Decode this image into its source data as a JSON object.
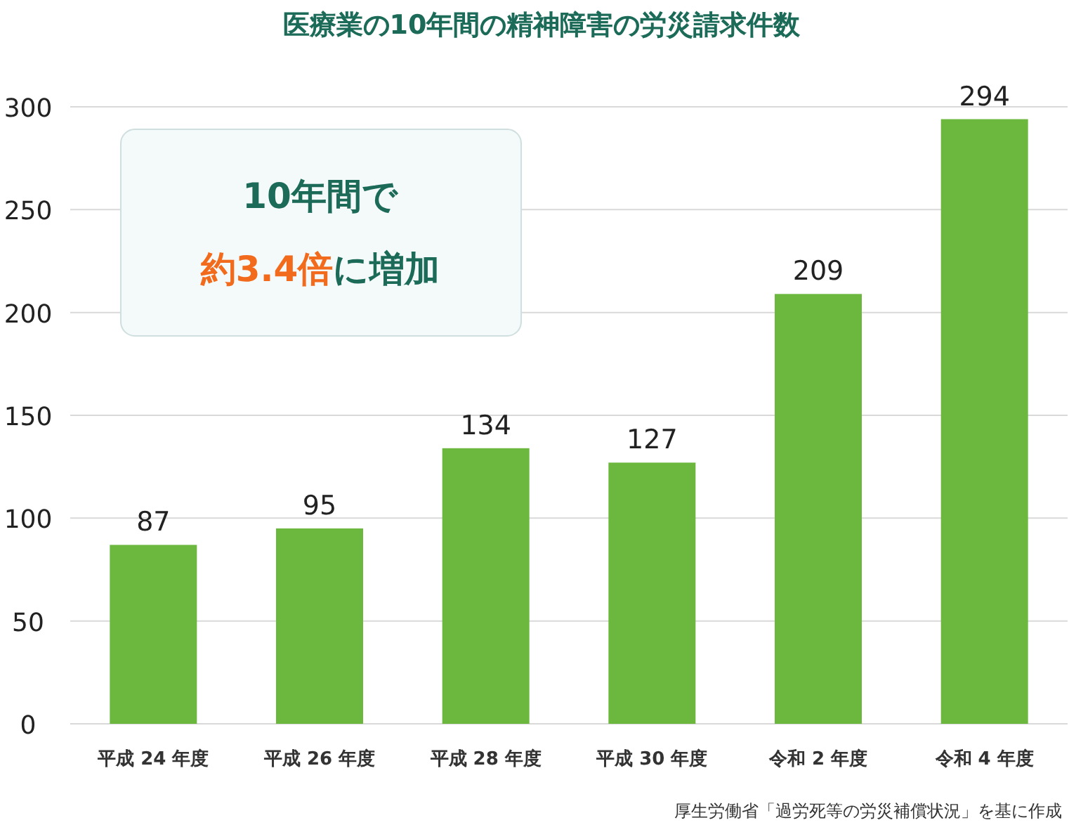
{
  "chart_data": {
    "type": "bar",
    "title": "医療業の10年間の精神障害の労災請求件数",
    "categories": [
      "平成 24 年度",
      "平成 26 年度",
      "平成 28 年度",
      "平成 30 年度",
      "令和 2 年度",
      "令和 4 年度"
    ],
    "values": [
      87,
      95,
      134,
      127,
      209,
      294
    ],
    "color": "#6cb83f",
    "ylim": [
      0,
      300
    ],
    "yticks": [
      0,
      50,
      100,
      150,
      200,
      250,
      300
    ],
    "grid": "y",
    "data_labels": true,
    "annotations": [
      "10年間で",
      "約3.4倍に増加",
      "厚生労働省「過労死等の労災補償状況」を基に作成"
    ]
  }
}
